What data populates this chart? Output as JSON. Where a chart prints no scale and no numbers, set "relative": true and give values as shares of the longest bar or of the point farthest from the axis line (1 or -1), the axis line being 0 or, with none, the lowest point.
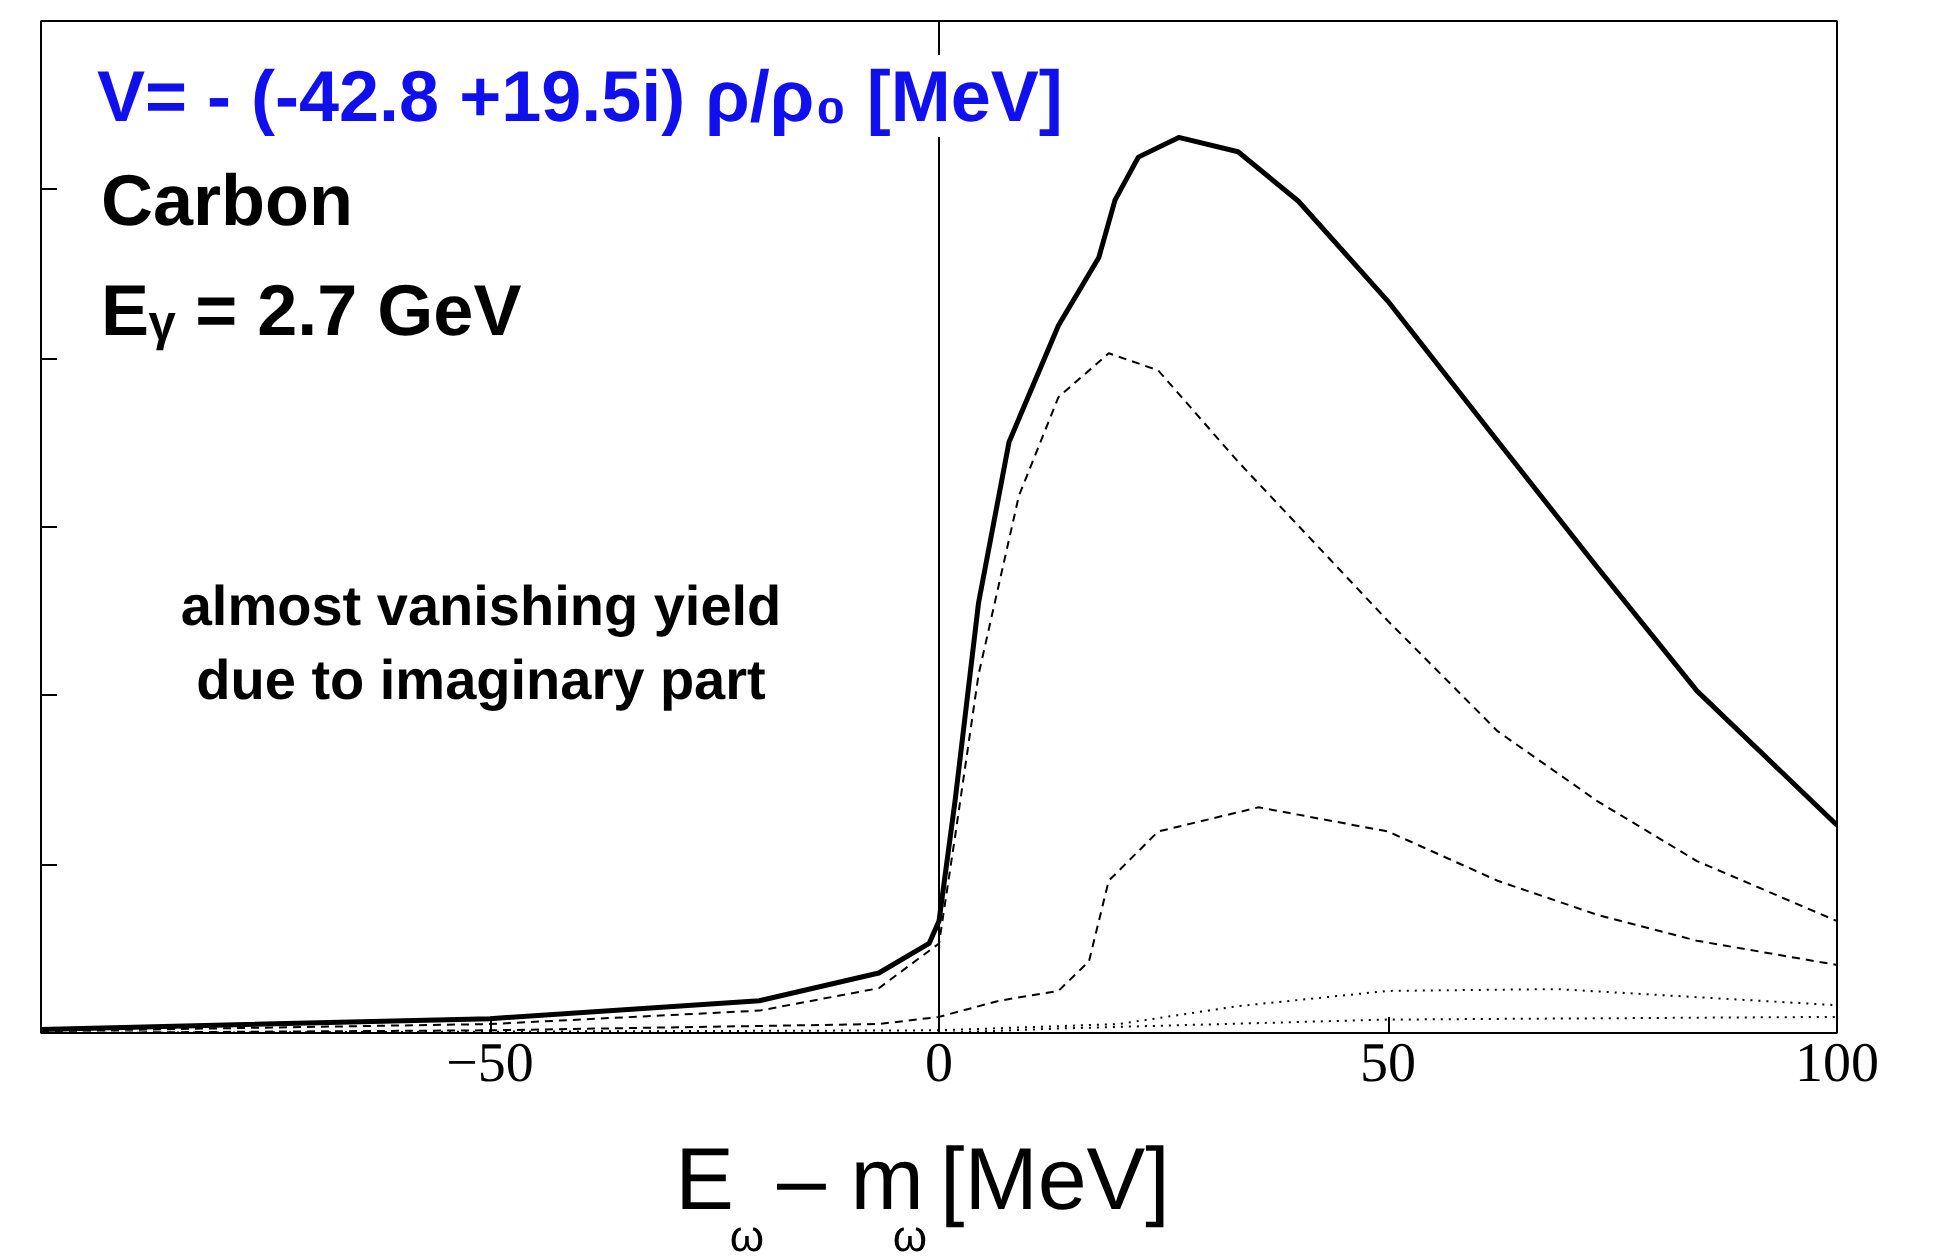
{
  "chart_data": {
    "type": "line",
    "relative": true,
    "title": "V= - (-42.8 +19.5i) ρ/ρ₀ [MeV]",
    "xlabel": "E$_{ω}$ – m$_{ω}$ [MeV]",
    "xlim": [
      -100,
      100
    ],
    "xticks": [
      {
        "value": -50,
        "label": "−50"
      },
      0,
      50,
      100
    ],
    "tick_labels": "x",
    "grid": false,
    "ref_lines": [
      {
        "axis": "x",
        "value": 0,
        "color": "#000000"
      }
    ],
    "annotations": [
      "Carbon",
      "Eᵧ = 2.7 GeV",
      "almost vanishing yield\ndue to imaginary part"
    ],
    "series": [
      {
        "color": "#000000",
        "line_style": "solid",
        "x": [
          -100,
          -50,
          -20,
          -6.7,
          -1.1,
          0,
          1.8,
          4.4,
          7.8,
          13.3,
          17.8,
          19.6,
          22.2,
          26.7,
          33.3,
          40,
          50,
          62.2,
          73.3,
          84.4,
          100
        ],
        "values": [
          0.004,
          0.016,
          0.036,
          0.067,
          0.1,
          0.125,
          0.26,
          0.48,
          0.66,
          0.79,
          0.866,
          0.93,
          0.978,
          1.0,
          0.984,
          0.929,
          0.817,
          0.661,
          0.52,
          0.382,
          0.232
        ]
      },
      {
        "color": "#000000",
        "line_style": "dashed",
        "x": [
          -100,
          -50,
          -20,
          -6.7,
          0,
          1.8,
          4.4,
          8.9,
          13.3,
          18.9,
          24.4,
          33.3,
          50,
          62.2,
          73.3,
          84.4,
          100
        ],
        "values": [
          0.002,
          0.01,
          0.025,
          0.05,
          0.1,
          0.22,
          0.4,
          0.6,
          0.71,
          0.759,
          0.74,
          0.638,
          0.46,
          0.337,
          0.259,
          0.192,
          0.125
        ]
      },
      {
        "color": "#000000",
        "line_style": "dashed",
        "x": [
          -100,
          -50,
          -6.7,
          0,
          6.7,
          13.3,
          16.7,
          18.9,
          24.4,
          35.6,
          50,
          62.2,
          73.3,
          84.4,
          100
        ],
        "values": [
          0,
          0.003,
          0.01,
          0.018,
          0.036,
          0.047,
          0.08,
          0.17,
          0.225,
          0.252,
          0.225,
          0.17,
          0.132,
          0.103,
          0.076
        ]
      },
      {
        "color": "#000000",
        "line_style": "dotted",
        "x": [
          -100,
          0,
          20,
          33.3,
          50,
          68.9,
          100
        ],
        "values": [
          0,
          0.003,
          0.01,
          0.03,
          0.047,
          0.049,
          0.031
        ]
      },
      {
        "color": "#000000",
        "line_style": "dotted",
        "x": [
          -100,
          0,
          13.3,
          50,
          100
        ],
        "values": [
          0,
          0,
          0.005,
          0.015,
          0.018
        ]
      }
    ]
  }
}
